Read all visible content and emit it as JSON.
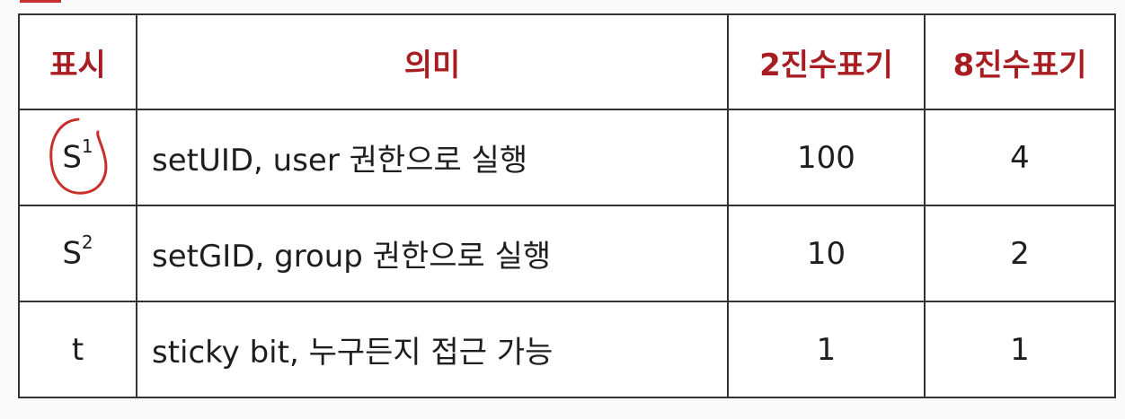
{
  "table": {
    "headers": {
      "symbol": "표시",
      "meaning": "의미",
      "binary": "2진수표기",
      "octal": "8진수표기"
    },
    "rows": [
      {
        "symbol": "S",
        "symbol_sup": "1",
        "meaning": "setUID, user 권한으로 실행",
        "binary": "100",
        "octal": "4"
      },
      {
        "symbol": "S",
        "symbol_sup": "2",
        "meaning": "setGID, group 권한으로 실행",
        "binary": "10",
        "octal": "2"
      },
      {
        "symbol": "t",
        "symbol_sup": "",
        "meaning": "sticky bit, 누구든지 접근 가능",
        "binary": "1",
        "octal": "1"
      }
    ]
  },
  "colors": {
    "header_text": "#a71d22",
    "annotation": "#c9302c",
    "border": "#333333"
  }
}
